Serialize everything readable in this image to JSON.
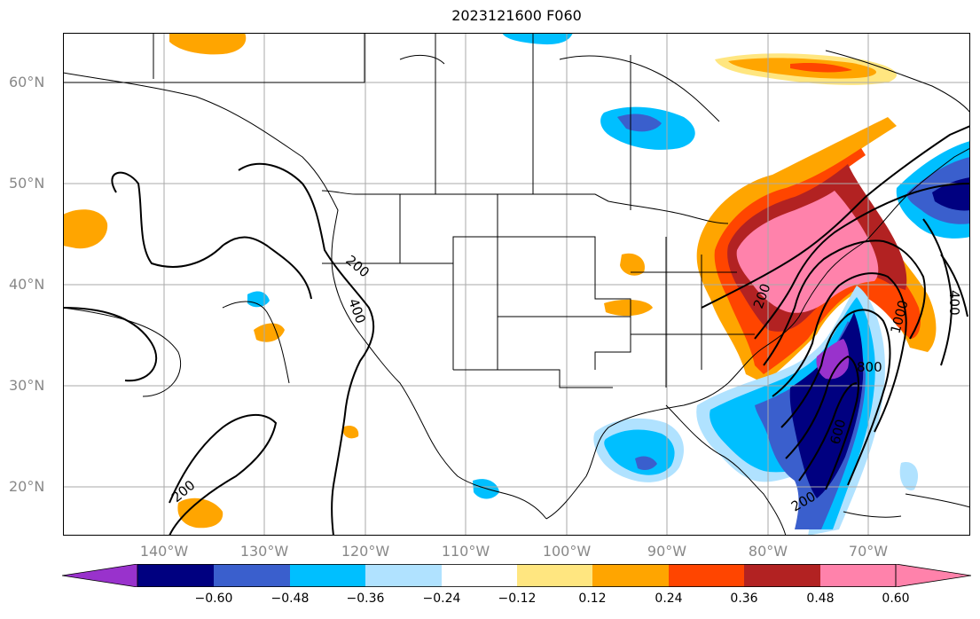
{
  "title": "2023121600 F060",
  "axes": {
    "lat_labels": [
      "60°N",
      "50°N",
      "40°N",
      "30°N",
      "20°N"
    ],
    "lon_labels": [
      "140°W",
      "130°W",
      "120°W",
      "110°W",
      "100°W",
      "90°W",
      "80°W",
      "70°W"
    ],
    "lon_range": [
      -150,
      -60
    ],
    "lat_range": [
      15,
      65
    ],
    "grid": true
  },
  "contour_labels": [
    "200",
    "400",
    "200",
    "200",
    "1000",
    "800",
    "600",
    "400",
    "200"
  ],
  "colorbar": {
    "ticks": [
      "−0.60",
      "−0.48",
      "−0.36",
      "−0.24",
      "−0.12",
      "0.12",
      "0.24",
      "0.36",
      "0.48",
      "0.60"
    ],
    "colors": [
      "#9932cc",
      "#000080",
      "#3a5fcd",
      "#00bfff",
      "#b0e2ff",
      "#ffffff",
      "#ffe680",
      "#ffa500",
      "#ff4500",
      "#b22222",
      "#ff82ab"
    ]
  },
  "icons": [
    "coastline-map",
    "colorbar-arrow-left",
    "colorbar-arrow-right"
  ]
}
